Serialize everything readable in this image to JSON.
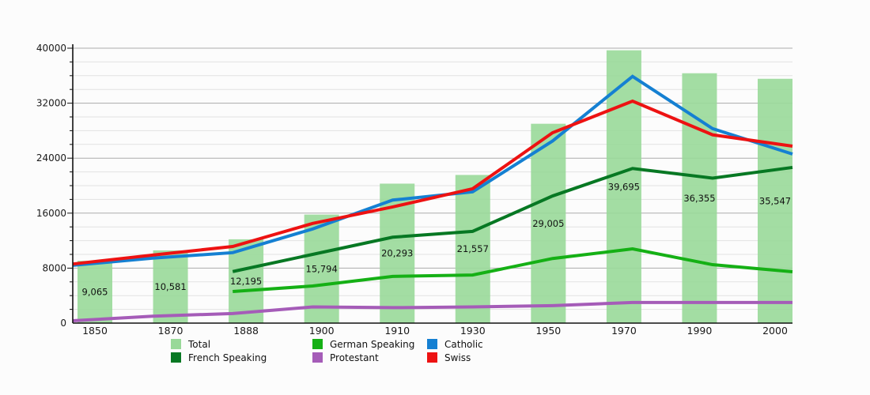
{
  "chart_data": {
    "type": "bar+line",
    "title": "",
    "xlabel": "",
    "ylabel": "",
    "categories": [
      "1850",
      "1870",
      "1888",
      "1900",
      "1910",
      "1930",
      "1950",
      "1970",
      "1990",
      "2000"
    ],
    "ylim": [
      0,
      40000
    ],
    "y_major_ticks": [
      0,
      8000,
      16000,
      24000,
      32000,
      40000
    ],
    "y_tick_labels": [
      "0",
      "8000",
      "16000",
      "24000",
      "32000",
      "40000"
    ],
    "y_minor_step": 2000,
    "grid": "major+minor",
    "legend_position": "bottom",
    "bar_series": {
      "name": "Total",
      "color": "#99D999",
      "values": [
        9065,
        10581,
        12195,
        15794,
        20293,
        21557,
        29005,
        39695,
        36355,
        35547
      ],
      "labels": [
        "9,065",
        "10,581",
        "12,195",
        "15,794",
        "20,293",
        "21,557",
        "29,005",
        "39,695",
        "36,355",
        "35,547"
      ]
    },
    "series": [
      {
        "name": "Protestant",
        "color": "#A55CB8",
        "values": [
          350,
          1000,
          1400,
          2350,
          2250,
          2350,
          2550,
          3000,
          3000,
          3000
        ]
      },
      {
        "name": "German Speaking",
        "color": "#15B015",
        "values": [
          null,
          null,
          4600,
          5400,
          6800,
          7000,
          9400,
          10800,
          8500,
          7470
        ]
      },
      {
        "name": "French Speaking",
        "color": "#077823",
        "values": [
          null,
          null,
          7500,
          10000,
          12500,
          13350,
          18500,
          22500,
          21100,
          22650
        ]
      },
      {
        "name": "Catholic",
        "color": "#1580D2",
        "values": [
          8400,
          9450,
          10250,
          13700,
          17900,
          19100,
          26500,
          35900,
          28300,
          24600
        ]
      },
      {
        "name": "Swiss",
        "color": "#ED1212",
        "values": [
          8600,
          9900,
          11150,
          14500,
          16900,
          19550,
          27700,
          32300,
          27400,
          25750
        ]
      }
    ],
    "legend": [
      {
        "label": "Total",
        "color": "#99D999"
      },
      {
        "label": "German Speaking",
        "color": "#15B015"
      },
      {
        "label": "Catholic",
        "color": "#1580D2"
      },
      {
        "label": "French Speaking",
        "color": "#077823"
      },
      {
        "label": "Protestant",
        "color": "#A55CB8"
      },
      {
        "label": "Swiss",
        "color": "#ED1212"
      }
    ],
    "colors": {
      "axis": "#111111",
      "major_grid": "#ABABAB",
      "minor_grid": "#E2E2E2",
      "tick_text": "#1a1a1a",
      "bar_value_text": "#111111"
    }
  }
}
